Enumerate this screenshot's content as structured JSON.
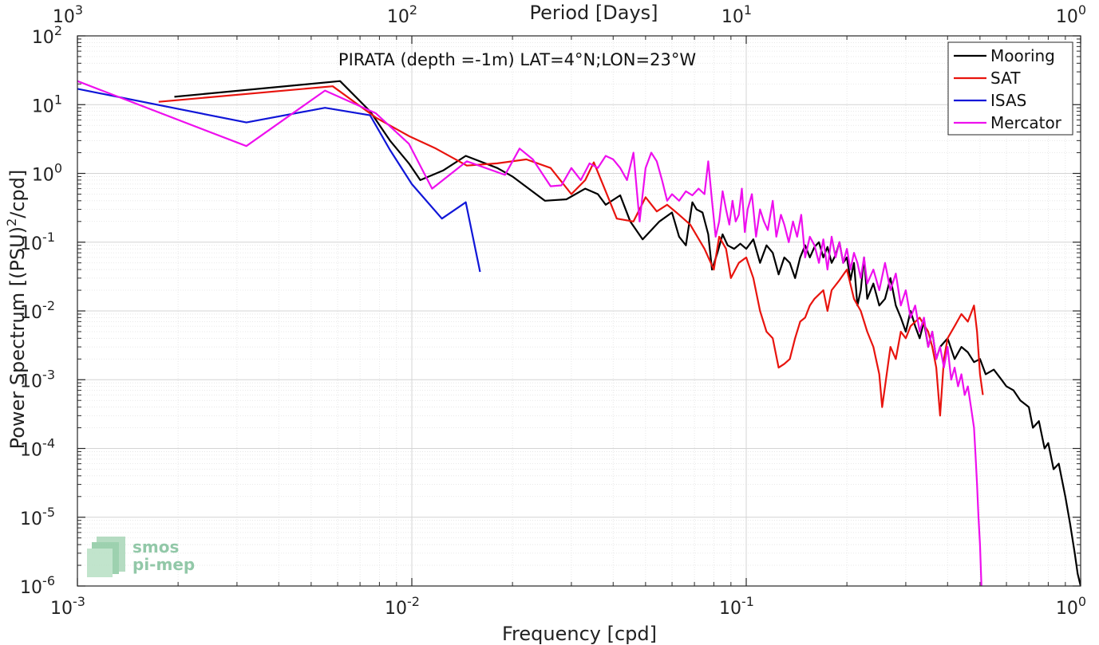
{
  "chart_data": {
    "type": "line",
    "title": "PIRATA (depth =-1m) LAT=4°N;LON=23°W",
    "xlabel": "Frequency [cpd]",
    "ylabel_main": "Power Spectrum [(PSU)",
    "ylabel_sup": "2",
    "ylabel_tail": "/cpd]",
    "top_xlabel": "Period [Days]",
    "x_scale": "log",
    "y_scale": "log",
    "xlim": [
      0.001,
      1
    ],
    "ylim": [
      1e-06,
      100
    ],
    "grid": true,
    "legend_position": "top-right",
    "x_ticks": [
      {
        "base": "10",
        "exp": "-3"
      },
      {
        "base": "10",
        "exp": "-2"
      },
      {
        "base": "10",
        "exp": "-1"
      },
      {
        "base": "10",
        "exp": "0"
      }
    ],
    "top_ticks": [
      {
        "base": "10",
        "exp": "3"
      },
      {
        "base": "10",
        "exp": "2"
      },
      {
        "base": "10",
        "exp": "1"
      },
      {
        "base": "10",
        "exp": "0"
      }
    ],
    "y_ticks": [
      {
        "base": "10",
        "exp": "2"
      },
      {
        "base": "10",
        "exp": "1"
      },
      {
        "base": "10",
        "exp": "0"
      },
      {
        "base": "10",
        "exp": "-1"
      },
      {
        "base": "10",
        "exp": "-2"
      },
      {
        "base": "10",
        "exp": "-3"
      },
      {
        "base": "10",
        "exp": "-4"
      },
      {
        "base": "10",
        "exp": "-5"
      },
      {
        "base": "10",
        "exp": "-6"
      }
    ],
    "series": [
      {
        "name": "Mooring",
        "color": "#000000",
        "points": [
          [
            0.00195,
            13
          ],
          [
            0.0061,
            22
          ],
          [
            0.0075,
            8
          ],
          [
            0.0086,
            3
          ],
          [
            0.0098,
            1.4
          ],
          [
            0.0106,
            0.8
          ],
          [
            0.0124,
            1.1
          ],
          [
            0.0145,
            1.8
          ],
          [
            0.018,
            1.2
          ],
          [
            0.02,
            0.9
          ],
          [
            0.025,
            0.4
          ],
          [
            0.029,
            0.42
          ],
          [
            0.033,
            0.6
          ],
          [
            0.036,
            0.5
          ],
          [
            0.038,
            0.35
          ],
          [
            0.042,
            0.48
          ],
          [
            0.045,
            0.2
          ],
          [
            0.049,
            0.11
          ],
          [
            0.055,
            0.2
          ],
          [
            0.06,
            0.27
          ],
          [
            0.063,
            0.12
          ],
          [
            0.066,
            0.09
          ],
          [
            0.069,
            0.38
          ],
          [
            0.071,
            0.3
          ],
          [
            0.074,
            0.27
          ],
          [
            0.077,
            0.13
          ],
          [
            0.079,
            0.04
          ],
          [
            0.082,
            0.07
          ],
          [
            0.085,
            0.13
          ],
          [
            0.088,
            0.09
          ],
          [
            0.092,
            0.08
          ],
          [
            0.096,
            0.095
          ],
          [
            0.1,
            0.08
          ],
          [
            0.105,
            0.11
          ],
          [
            0.11,
            0.05
          ],
          [
            0.115,
            0.09
          ],
          [
            0.12,
            0.07
          ],
          [
            0.125,
            0.034
          ],
          [
            0.13,
            0.06
          ],
          [
            0.135,
            0.05
          ],
          [
            0.14,
            0.03
          ],
          [
            0.145,
            0.06
          ],
          [
            0.15,
            0.09
          ],
          [
            0.155,
            0.06
          ],
          [
            0.16,
            0.085
          ],
          [
            0.165,
            0.1
          ],
          [
            0.17,
            0.06
          ],
          [
            0.175,
            0.085
          ],
          [
            0.18,
            0.05
          ],
          [
            0.185,
            0.065
          ],
          [
            0.19,
            0.1
          ],
          [
            0.195,
            0.05
          ],
          [
            0.2,
            0.06
          ],
          [
            0.205,
            0.028
          ],
          [
            0.21,
            0.05
          ],
          [
            0.215,
            0.012
          ],
          [
            0.22,
            0.02
          ],
          [
            0.225,
            0.06
          ],
          [
            0.23,
            0.015
          ],
          [
            0.24,
            0.025
          ],
          [
            0.25,
            0.012
          ],
          [
            0.26,
            0.015
          ],
          [
            0.27,
            0.03
          ],
          [
            0.28,
            0.012
          ],
          [
            0.29,
            0.008
          ],
          [
            0.3,
            0.005
          ],
          [
            0.31,
            0.01
          ],
          [
            0.32,
            0.006
          ],
          [
            0.33,
            0.004
          ],
          [
            0.34,
            0.007
          ],
          [
            0.35,
            0.003
          ],
          [
            0.36,
            0.005
          ],
          [
            0.37,
            0.002
          ],
          [
            0.38,
            0.003
          ],
          [
            0.4,
            0.004
          ],
          [
            0.42,
            0.002
          ],
          [
            0.44,
            0.003
          ],
          [
            0.46,
            0.0025
          ],
          [
            0.48,
            0.0018
          ],
          [
            0.5,
            0.002
          ],
          [
            0.52,
            0.0012
          ],
          [
            0.55,
            0.0014
          ],
          [
            0.58,
            0.001
          ],
          [
            0.6,
            0.0008
          ],
          [
            0.63,
            0.0007
          ],
          [
            0.66,
            0.0005
          ],
          [
            0.7,
            0.0004
          ],
          [
            0.72,
            0.0002
          ],
          [
            0.75,
            0.00025
          ],
          [
            0.78,
            0.0001
          ],
          [
            0.8,
            0.00012
          ],
          [
            0.83,
            5e-05
          ],
          [
            0.86,
            6e-05
          ],
          [
            0.9,
            2e-05
          ],
          [
            0.93,
            8e-06
          ],
          [
            0.96,
            3e-06
          ],
          [
            0.98,
            1.5e-06
          ],
          [
            1.0,
            1e-06
          ]
        ]
      },
      {
        "name": "SAT",
        "color": "#e8140e",
        "points": [
          [
            0.00175,
            11
          ],
          [
            0.0058,
            18.5
          ],
          [
            0.0078,
            6.5
          ],
          [
            0.0098,
            3.5
          ],
          [
            0.0118,
            2.3
          ],
          [
            0.0146,
            1.3
          ],
          [
            0.018,
            1.4
          ],
          [
            0.022,
            1.6
          ],
          [
            0.026,
            1.2
          ],
          [
            0.03,
            0.5
          ],
          [
            0.033,
            0.8
          ],
          [
            0.035,
            1.45
          ],
          [
            0.038,
            0.55
          ],
          [
            0.041,
            0.22
          ],
          [
            0.046,
            0.2
          ],
          [
            0.05,
            0.45
          ],
          [
            0.054,
            0.28
          ],
          [
            0.058,
            0.35
          ],
          [
            0.063,
            0.25
          ],
          [
            0.068,
            0.18
          ],
          [
            0.075,
            0.08
          ],
          [
            0.08,
            0.04
          ],
          [
            0.083,
            0.12
          ],
          [
            0.087,
            0.08
          ],
          [
            0.09,
            0.03
          ],
          [
            0.095,
            0.05
          ],
          [
            0.1,
            0.06
          ],
          [
            0.105,
            0.03
          ],
          [
            0.11,
            0.01
          ],
          [
            0.115,
            0.005
          ],
          [
            0.12,
            0.004
          ],
          [
            0.125,
            0.0015
          ],
          [
            0.13,
            0.0017
          ],
          [
            0.135,
            0.002
          ],
          [
            0.14,
            0.004
          ],
          [
            0.145,
            0.007
          ],
          [
            0.15,
            0.008
          ],
          [
            0.155,
            0.012
          ],
          [
            0.16,
            0.015
          ],
          [
            0.17,
            0.02
          ],
          [
            0.175,
            0.01
          ],
          [
            0.18,
            0.02
          ],
          [
            0.19,
            0.028
          ],
          [
            0.2,
            0.04
          ],
          [
            0.21,
            0.015
          ],
          [
            0.22,
            0.01
          ],
          [
            0.23,
            0.005
          ],
          [
            0.24,
            0.003
          ],
          [
            0.25,
            0.0012
          ],
          [
            0.255,
            0.0004
          ],
          [
            0.26,
            0.0008
          ],
          [
            0.27,
            0.003
          ],
          [
            0.28,
            0.002
          ],
          [
            0.29,
            0.005
          ],
          [
            0.3,
            0.004
          ],
          [
            0.31,
            0.006
          ],
          [
            0.33,
            0.008
          ],
          [
            0.35,
            0.005
          ],
          [
            0.36,
            0.003
          ],
          [
            0.37,
            0.0015
          ],
          [
            0.38,
            0.0003
          ],
          [
            0.39,
            0.002
          ],
          [
            0.4,
            0.004
          ],
          [
            0.42,
            0.006
          ],
          [
            0.44,
            0.009
          ],
          [
            0.46,
            0.007
          ],
          [
            0.48,
            0.012
          ],
          [
            0.49,
            0.005
          ],
          [
            0.5,
            0.0012
          ],
          [
            0.51,
            0.0006
          ]
        ]
      },
      {
        "name": "ISAS",
        "color": "#1016d8",
        "points": [
          [
            0.001,
            17
          ],
          [
            0.0032,
            5.5
          ],
          [
            0.0055,
            9
          ],
          [
            0.0075,
            7
          ],
          [
            0.0086,
            2.2
          ],
          [
            0.01,
            0.7
          ],
          [
            0.0123,
            0.22
          ],
          [
            0.0145,
            0.38
          ],
          [
            0.016,
            0.037
          ]
        ]
      },
      {
        "name": "Mercator",
        "color": "#ee10ee",
        "points": [
          [
            0.001,
            22
          ],
          [
            0.0032,
            2.5
          ],
          [
            0.0055,
            16
          ],
          [
            0.0078,
            7.5
          ],
          [
            0.0098,
            2.7
          ],
          [
            0.0115,
            0.6
          ],
          [
            0.0146,
            1.5
          ],
          [
            0.019,
            0.95
          ],
          [
            0.021,
            2.3
          ],
          [
            0.023,
            1.6
          ],
          [
            0.026,
            0.65
          ],
          [
            0.028,
            0.67
          ],
          [
            0.03,
            1.2
          ],
          [
            0.032,
            0.8
          ],
          [
            0.034,
            1.4
          ],
          [
            0.036,
            1.2
          ],
          [
            0.038,
            1.8
          ],
          [
            0.04,
            1.6
          ],
          [
            0.042,
            1.2
          ],
          [
            0.044,
            0.8
          ],
          [
            0.046,
            2
          ],
          [
            0.048,
            0.2
          ],
          [
            0.05,
            1.2
          ],
          [
            0.052,
            2
          ],
          [
            0.054,
            1.5
          ],
          [
            0.056,
            0.8
          ],
          [
            0.058,
            0.4
          ],
          [
            0.06,
            0.5
          ],
          [
            0.063,
            0.4
          ],
          [
            0.066,
            0.55
          ],
          [
            0.069,
            0.48
          ],
          [
            0.072,
            0.6
          ],
          [
            0.075,
            0.5
          ],
          [
            0.077,
            1.5
          ],
          [
            0.079,
            0.4
          ],
          [
            0.081,
            0.12
          ],
          [
            0.083,
            0.2
          ],
          [
            0.085,
            0.55
          ],
          [
            0.087,
            0.3
          ],
          [
            0.089,
            0.18
          ],
          [
            0.091,
            0.4
          ],
          [
            0.093,
            0.2
          ],
          [
            0.095,
            0.25
          ],
          [
            0.097,
            0.6
          ],
          [
            0.099,
            0.14
          ],
          [
            0.101,
            0.3
          ],
          [
            0.104,
            0.5
          ],
          [
            0.107,
            0.12
          ],
          [
            0.11,
            0.3
          ],
          [
            0.113,
            0.2
          ],
          [
            0.116,
            0.15
          ],
          [
            0.12,
            0.4
          ],
          [
            0.123,
            0.12
          ],
          [
            0.127,
            0.25
          ],
          [
            0.13,
            0.18
          ],
          [
            0.134,
            0.1
          ],
          [
            0.138,
            0.2
          ],
          [
            0.142,
            0.12
          ],
          [
            0.146,
            0.25
          ],
          [
            0.15,
            0.06
          ],
          [
            0.155,
            0.12
          ],
          [
            0.16,
            0.09
          ],
          [
            0.165,
            0.05
          ],
          [
            0.17,
            0.11
          ],
          [
            0.175,
            0.04
          ],
          [
            0.18,
            0.12
          ],
          [
            0.185,
            0.06
          ],
          [
            0.19,
            0.1
          ],
          [
            0.195,
            0.05
          ],
          [
            0.2,
            0.08
          ],
          [
            0.205,
            0.04
          ],
          [
            0.21,
            0.07
          ],
          [
            0.215,
            0.05
          ],
          [
            0.22,
            0.03
          ],
          [
            0.225,
            0.06
          ],
          [
            0.23,
            0.025
          ],
          [
            0.24,
            0.04
          ],
          [
            0.25,
            0.02
          ],
          [
            0.26,
            0.05
          ],
          [
            0.27,
            0.02
          ],
          [
            0.28,
            0.035
          ],
          [
            0.29,
            0.012
          ],
          [
            0.3,
            0.02
          ],
          [
            0.31,
            0.008
          ],
          [
            0.32,
            0.012
          ],
          [
            0.33,
            0.005
          ],
          [
            0.34,
            0.008
          ],
          [
            0.35,
            0.003
          ],
          [
            0.36,
            0.005
          ],
          [
            0.37,
            0.002
          ],
          [
            0.38,
            0.003
          ],
          [
            0.39,
            0.0015
          ],
          [
            0.4,
            0.003
          ],
          [
            0.41,
            0.001
          ],
          [
            0.42,
            0.0015
          ],
          [
            0.43,
            0.0008
          ],
          [
            0.44,
            0.0012
          ],
          [
            0.45,
            0.0006
          ],
          [
            0.46,
            0.0008
          ],
          [
            0.47,
            0.0004
          ],
          [
            0.48,
            0.0002
          ],
          [
            0.485,
            8e-05
          ],
          [
            0.49,
            3e-05
          ],
          [
            0.495,
            1e-05
          ],
          [
            0.5,
            4e-06
          ],
          [
            0.505,
            1e-06
          ]
        ]
      }
    ]
  },
  "logo": {
    "line1": "smos",
    "line2": "pi-mep"
  }
}
